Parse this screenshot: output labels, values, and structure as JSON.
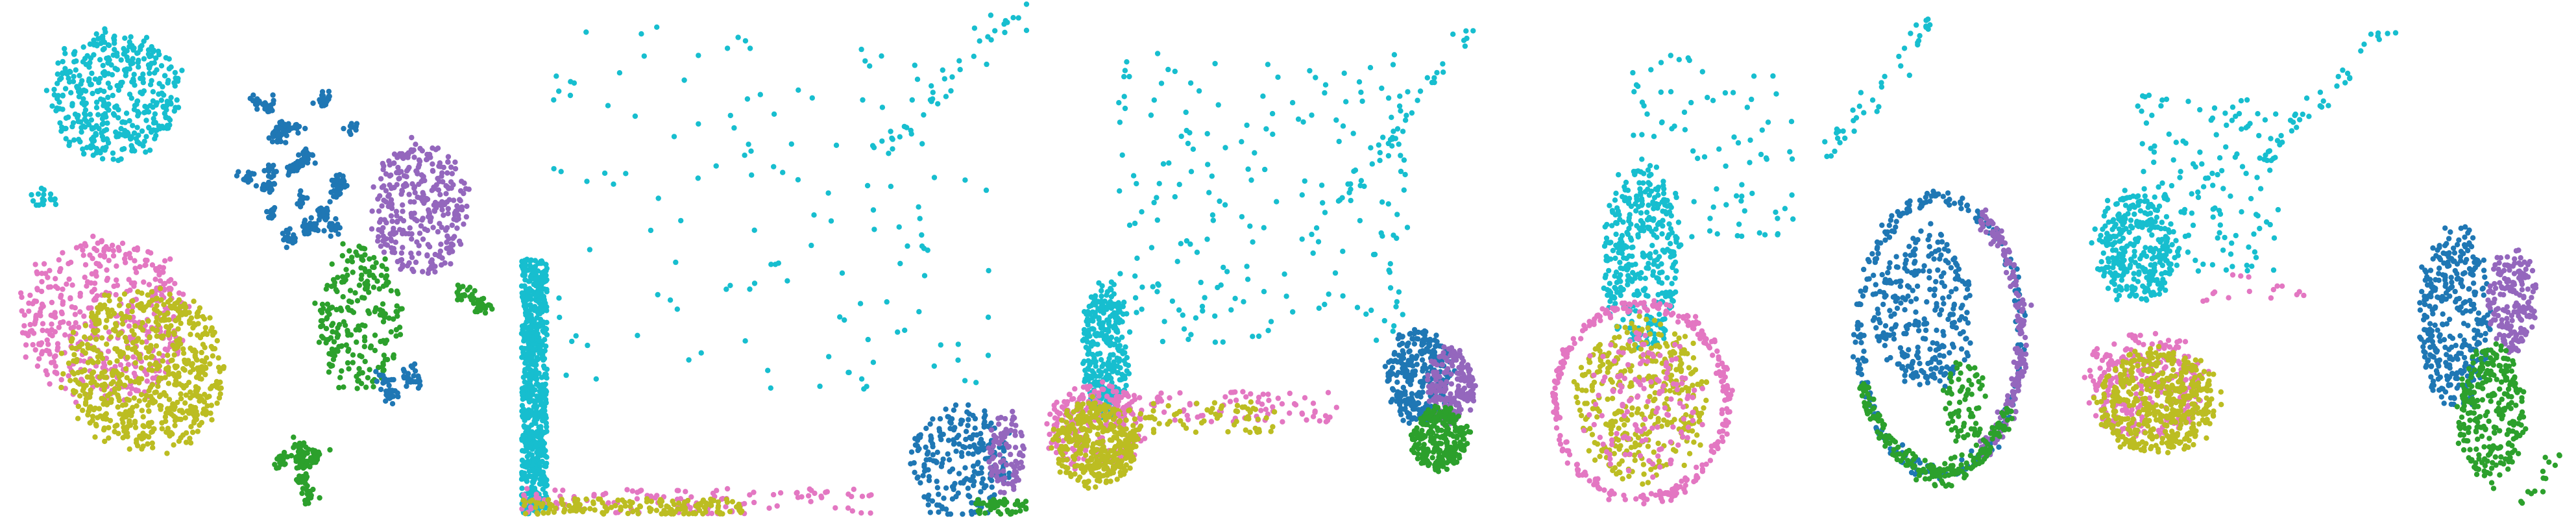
{
  "colors": {
    "cyan": "#17becf",
    "blue": "#1f77b4",
    "purple": "#9467bd",
    "green": "#2ca02c",
    "pink": "#e377c2",
    "olive": "#bcbd22"
  },
  "chart_data": [
    {
      "type": "scatter",
      "grid": false,
      "axes_visible": false,
      "xlim": [
        0,
        100
      ],
      "ylim": [
        0,
        100
      ],
      "clusters": [
        {
          "color": "cyan",
          "shape": "blob",
          "cx": 22,
          "cy": 82,
          "rx": 14,
          "ry": 14,
          "n": 420
        },
        {
          "color": "cyan",
          "shape": "blob",
          "cx": 8,
          "cy": 62,
          "rx": 3,
          "ry": 2,
          "n": 18
        },
        {
          "color": "pink",
          "shape": "blob",
          "cx": 20,
          "cy": 38,
          "rx": 18,
          "ry": 17,
          "n": 450
        },
        {
          "color": "olive",
          "shape": "blob",
          "cx": 28,
          "cy": 28,
          "rx": 17,
          "ry": 17,
          "n": 650
        },
        {
          "color": "blue",
          "shape": "islands",
          "cx": 58,
          "cy": 72,
          "rx": 11,
          "ry": 20,
          "n": 360,
          "islands": 22
        },
        {
          "color": "purple",
          "shape": "blob",
          "cx": 82,
          "cy": 60,
          "rx": 10,
          "ry": 14,
          "n": 320
        },
        {
          "color": "green",
          "shape": "blob",
          "cx": 70,
          "cy": 38,
          "rx": 9,
          "ry": 16,
          "n": 230
        },
        {
          "color": "green",
          "shape": "islands",
          "cx": 58,
          "cy": 10,
          "rx": 5,
          "ry": 8,
          "n": 120,
          "islands": 7
        },
        {
          "color": "blue",
          "shape": "islands",
          "cx": 78,
          "cy": 18,
          "rx": 6,
          "ry": 10,
          "n": 60,
          "islands": 4
        },
        {
          "color": "green",
          "shape": "islands",
          "cx": 92,
          "cy": 40,
          "rx": 4,
          "ry": 6,
          "n": 40,
          "islands": 3
        }
      ]
    },
    {
      "type": "scatter",
      "grid": false,
      "axes_visible": false,
      "xlim": [
        0,
        100
      ],
      "ylim": [
        0,
        100
      ],
      "clusters": [
        {
          "color": "cyan",
          "shape": "vband",
          "cx": 3,
          "cy": 25,
          "rx": 2.5,
          "ry": 25,
          "n": 700
        },
        {
          "color": "cyan",
          "shape": "sparse",
          "cx": 50,
          "cy": 60,
          "rx": 48,
          "ry": 40,
          "n": 140
        },
        {
          "color": "cyan",
          "shape": "diag",
          "x0": 70,
          "y0": 70,
          "x1": 99,
          "y1": 99,
          "n": 35
        },
        {
          "color": "pink",
          "shape": "hband",
          "cx": 35,
          "cy": 2.5,
          "rx": 35,
          "ry": 2.5,
          "n": 120
        },
        {
          "color": "olive",
          "shape": "hband",
          "cx": 22,
          "cy": 1.5,
          "rx": 22,
          "ry": 1.5,
          "n": 160
        },
        {
          "color": "blue",
          "shape": "blob",
          "cx": 87,
          "cy": 10,
          "rx": 11,
          "ry": 12,
          "n": 230
        },
        {
          "color": "purple",
          "shape": "blob",
          "cx": 96,
          "cy": 12,
          "rx": 4,
          "ry": 9,
          "n": 90
        },
        {
          "color": "green",
          "shape": "hband",
          "cx": 95,
          "cy": 1.5,
          "rx": 5,
          "ry": 1.5,
          "n": 50
        }
      ]
    },
    {
      "type": "scatter",
      "grid": false,
      "axes_visible": false,
      "xlim": [
        0,
        100
      ],
      "ylim": [
        0,
        100
      ],
      "clusters": [
        {
          "color": "cyan",
          "shape": "blob",
          "cx": 14,
          "cy": 32,
          "rx": 5,
          "ry": 14,
          "n": 320
        },
        {
          "color": "cyan",
          "shape": "sparse",
          "cx": 45,
          "cy": 62,
          "rx": 32,
          "ry": 32,
          "n": 200
        },
        {
          "color": "cyan",
          "shape": "diag",
          "x0": 60,
          "y0": 60,
          "x1": 88,
          "y1": 99,
          "n": 40
        },
        {
          "color": "pink",
          "shape": "blob",
          "cx": 12,
          "cy": 17,
          "rx": 10,
          "ry": 10,
          "n": 220
        },
        {
          "color": "olive",
          "shape": "blob",
          "cx": 12,
          "cy": 14,
          "rx": 9,
          "ry": 9,
          "n": 360
        },
        {
          "color": "pink",
          "shape": "hband",
          "cx": 38,
          "cy": 21,
          "rx": 22,
          "ry": 3,
          "n": 90
        },
        {
          "color": "olive",
          "shape": "hband",
          "cx": 33,
          "cy": 19,
          "rx": 15,
          "ry": 3,
          "n": 70
        },
        {
          "color": "blue",
          "shape": "blob",
          "cx": 76,
          "cy": 27,
          "rx": 7,
          "ry": 10,
          "n": 300
        },
        {
          "color": "purple",
          "shape": "blob",
          "cx": 82,
          "cy": 25,
          "rx": 5,
          "ry": 8,
          "n": 180
        },
        {
          "color": "green",
          "shape": "blob",
          "cx": 80,
          "cy": 15,
          "rx": 6,
          "ry": 7,
          "n": 260
        }
      ]
    },
    {
      "type": "scatter",
      "grid": false,
      "axes_visible": false,
      "xlim": [
        0,
        100
      ],
      "ylim": [
        0,
        100
      ],
      "clusters": [
        {
          "color": "cyan",
          "shape": "blob",
          "cx": 18,
          "cy": 50,
          "rx": 8,
          "ry": 20,
          "n": 360
        },
        {
          "color": "cyan",
          "shape": "sparse",
          "cx": 32,
          "cy": 72,
          "rx": 18,
          "ry": 20,
          "n": 90
        },
        {
          "color": "cyan",
          "shape": "diag",
          "x0": 55,
          "y0": 70,
          "x1": 77,
          "y1": 99,
          "n": 40
        },
        {
          "color": "pink",
          "shape": "ring",
          "cx": 18,
          "cy": 22,
          "rx": 17,
          "ry": 19,
          "n": 300
        },
        {
          "color": "olive",
          "shape": "blob",
          "cx": 18,
          "cy": 22,
          "rx": 14,
          "ry": 17,
          "n": 380
        },
        {
          "color": "pink",
          "shape": "blob",
          "cx": 18,
          "cy": 22,
          "rx": 13,
          "ry": 15,
          "n": 140
        },
        {
          "color": "blue",
          "shape": "ring",
          "cx": 77,
          "cy": 35,
          "rx": 16,
          "ry": 27,
          "n": 260
        },
        {
          "color": "blue",
          "shape": "blob",
          "cx": 74,
          "cy": 40,
          "rx": 11,
          "ry": 17,
          "n": 280
        },
        {
          "color": "purple",
          "shape": "arc",
          "cx": 77,
          "cy": 35,
          "rx": 16,
          "ry": 27,
          "a0": -60,
          "a1": 60,
          "n": 180
        },
        {
          "color": "green",
          "shape": "arc",
          "cx": 77,
          "cy": 35,
          "rx": 16,
          "ry": 27,
          "a0": 200,
          "a1": 330,
          "n": 200
        },
        {
          "color": "green",
          "shape": "blob",
          "cx": 82,
          "cy": 22,
          "rx": 5,
          "ry": 9,
          "n": 70
        }
      ]
    },
    {
      "type": "scatter",
      "grid": false,
      "axes_visible": false,
      "xlim": [
        0,
        100
      ],
      "ylim": [
        0,
        100
      ],
      "clusters": [
        {
          "color": "cyan",
          "shape": "blob",
          "cx": 14,
          "cy": 52,
          "rx": 9,
          "ry": 12,
          "n": 300
        },
        {
          "color": "cyan",
          "shape": "sparse",
          "cx": 28,
          "cy": 65,
          "rx": 16,
          "ry": 20,
          "n": 140
        },
        {
          "color": "cyan",
          "shape": "diag",
          "x0": 40,
          "y0": 70,
          "x1": 66,
          "y1": 98,
          "n": 40
        },
        {
          "color": "pink",
          "shape": "blob",
          "cx": 16,
          "cy": 25,
          "rx": 13,
          "ry": 11,
          "n": 300
        },
        {
          "color": "olive",
          "shape": "blob",
          "cx": 18,
          "cy": 22,
          "rx": 13,
          "ry": 11,
          "n": 460
        },
        {
          "color": "pink",
          "shape": "hband",
          "cx": 38,
          "cy": 44,
          "rx": 12,
          "ry": 3,
          "n": 16
        },
        {
          "color": "blue",
          "shape": "blob",
          "cx": 77,
          "cy": 38,
          "rx": 8,
          "ry": 19,
          "n": 340
        },
        {
          "color": "purple",
          "shape": "blob",
          "cx": 88,
          "cy": 42,
          "rx": 5,
          "ry": 11,
          "n": 180
        },
        {
          "color": "green",
          "shape": "blob",
          "cx": 84,
          "cy": 20,
          "rx": 7,
          "ry": 15,
          "n": 280
        },
        {
          "color": "green",
          "shape": "diag",
          "x0": 90,
          "y0": 2,
          "x1": 98,
          "y1": 12,
          "n": 14
        }
      ]
    }
  ]
}
